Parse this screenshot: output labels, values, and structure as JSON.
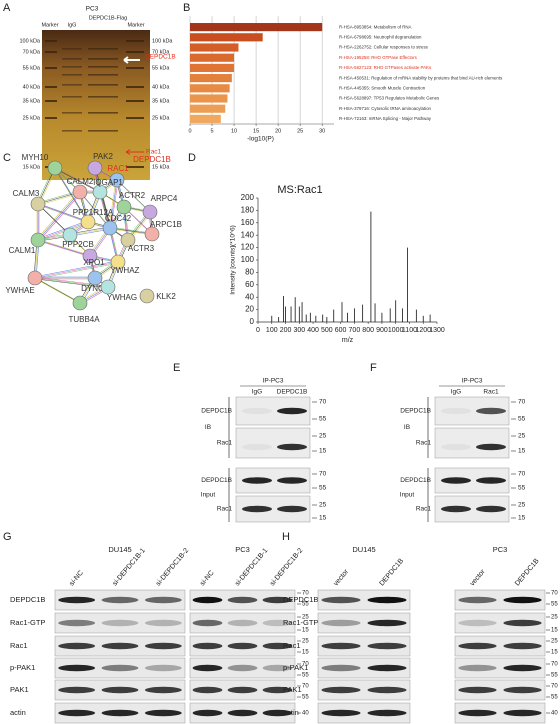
{
  "panel_labels": [
    "A",
    "B",
    "C",
    "D",
    "E",
    "F",
    "G",
    "H"
  ],
  "panel_a": {
    "header": "PC3",
    "lanes": [
      "Marker",
      "IgG",
      "DEPDC1B-Flag",
      "Marker"
    ],
    "markers": [
      "100 kDa",
      "70 kDa",
      "55 kDa",
      "40 kDa",
      "35 kDa",
      "25 kDa",
      "15 kDa"
    ],
    "annotations": [
      "DEPDC1B",
      "Rac1"
    ],
    "annotation_color": "#e0301e"
  },
  "panel_c": {
    "nodes": [
      {
        "label": "MYH10",
        "color": "#333333"
      },
      {
        "label": "PAK2",
        "color": "#333333"
      },
      {
        "label": "DEPDC1B",
        "color": "#e0301e"
      },
      {
        "label": "RAC1",
        "color": "#e0301e"
      },
      {
        "label": "CALM2",
        "color": "#333333"
      },
      {
        "label": "IQGAP1",
        "color": "#333333"
      },
      {
        "label": "CALM3",
        "color": "#333333"
      },
      {
        "label": "ACTR2",
        "color": "#333333"
      },
      {
        "label": "ARPC4",
        "color": "#333333"
      },
      {
        "label": "PPP1R12A",
        "color": "#333333"
      },
      {
        "label": "CDC42",
        "color": "#333333"
      },
      {
        "label": "ARPC1B",
        "color": "#333333"
      },
      {
        "label": "PPP2CB",
        "color": "#333333"
      },
      {
        "label": "ACTR3",
        "color": "#333333"
      },
      {
        "label": "CALM1",
        "color": "#333333"
      },
      {
        "label": "XPO1",
        "color": "#333333"
      },
      {
        "label": "YWHAZ",
        "color": "#333333"
      },
      {
        "label": "DYNC1I2",
        "color": "#333333"
      },
      {
        "label": "YWHAE",
        "color": "#333333"
      },
      {
        "label": "YWHAG",
        "color": "#333333"
      },
      {
        "label": "KLK2",
        "color": "#333333"
      },
      {
        "label": "TUBB4A",
        "color": "#333333"
      }
    ]
  },
  "chart_data": [
    {
      "type": "barh",
      "xlabel": "-log10(P)",
      "categories": [
        "R-HSA-8953854: Metabolism of RNA",
        "R-HSA-6798695: Neutrophil degranulation",
        "R-HSA-2262752: Cellular responses to stress",
        "R-HSA-195258: RHO GTPase Effectors",
        "R-HSA-5627123: RHO GTPases activate PAKs",
        "R-HSA-450531: Regulation of mRNA stability by proteins that bind AU-rich elements",
        "R-HSA-445355: Smooth Muscle Contraction",
        "R-HSA-5628897: TP53 Regulates Metabolic Genes",
        "R-HSA-379716: Cytosolic tRNA aminoacylation",
        "R-HSA-72163: mRNA Splicing - Major Pathway"
      ],
      "values": [
        30,
        16.5,
        11,
        10,
        10,
        9.5,
        9,
        8.5,
        8,
        7
      ],
      "colors": [
        "#a3361a",
        "#c84d1f",
        "#d35e28",
        "#da692e",
        "#df7434",
        "#e3803b",
        "#e78a43",
        "#ea954c",
        "#ed9e55",
        "#f0a85f"
      ],
      "label_colors": [
        "#333333",
        "#333333",
        "#333333",
        "#e0301e",
        "#e0301e",
        "#333333",
        "#333333",
        "#333333",
        "#333333",
        "#333333"
      ],
      "xlim": [
        0,
        32
      ],
      "xticks": [
        0,
        5,
        10,
        15,
        20,
        25,
        30
      ],
      "grid": true
    },
    {
      "type": "stem",
      "title": "MS:Rac1",
      "xlabel": "m/z",
      "ylabel": "Intensity [counts](*10^6)",
      "x": [
        100,
        150,
        185,
        200,
        240,
        270,
        300,
        320,
        350,
        380,
        420,
        470,
        500,
        550,
        610,
        650,
        700,
        760,
        820,
        850,
        900,
        960,
        1000,
        1050,
        1085,
        1150,
        1200,
        1250
      ],
      "values": [
        10,
        8,
        42,
        25,
        25,
        40,
        25,
        32,
        12,
        15,
        10,
        12,
        8,
        20,
        32,
        15,
        22,
        28,
        178,
        30,
        15,
        22,
        35,
        22,
        120,
        20,
        10,
        12
      ],
      "color": "#111111",
      "xlim": [
        0,
        1300
      ],
      "ylim": [
        0,
        200
      ],
      "xticks": [
        0,
        100,
        200,
        300,
        400,
        500,
        600,
        700,
        800,
        900,
        1000,
        1100,
        1200,
        1300
      ],
      "yticks": [
        0,
        20,
        40,
        60,
        80,
        100,
        120,
        140,
        160,
        180,
        200
      ]
    }
  ],
  "panel_e": {
    "header": "IP-PC3",
    "lanes": [
      "IgG",
      "DEPDC1B"
    ],
    "groups": [
      {
        "label": "IB",
        "rows": [
          "DEPDC1B",
          "Rac1"
        ]
      },
      {
        "label": "Input",
        "rows": [
          "DEPDC1B",
          "Rac1"
        ]
      }
    ],
    "markers": [
      70,
      55,
      25,
      15,
      70,
      55,
      25,
      15
    ]
  },
  "panel_f": {
    "header": "IP-PC3",
    "lanes": [
      "IgG",
      "Rac1"
    ],
    "groups": [
      {
        "label": "IB",
        "rows": [
          "DEPDC1B",
          "Rac1"
        ]
      },
      {
        "label": "Input",
        "rows": [
          "DEPDC1B",
          "Rac1"
        ]
      }
    ],
    "markers": [
      70,
      55,
      25,
      15,
      70,
      55,
      25,
      15
    ]
  },
  "panel_g": {
    "cell_lines": [
      {
        "name": "DU145",
        "lanes": [
          "si-NC",
          "si-DEPDC1B-1",
          "si-DEPDC1B-2"
        ]
      },
      {
        "name": "PC3",
        "lanes": [
          "si-NC",
          "si-DEPDC1B-1",
          "si-DEPDC1B-2"
        ]
      }
    ],
    "rows": [
      "DEPDC1B",
      "Rac1-GTP",
      "Rac1",
      "p-PAK1",
      "PAK1",
      "actin"
    ],
    "markers": [
      70,
      55,
      25,
      15,
      25,
      15,
      70,
      55,
      70,
      55,
      40
    ]
  },
  "panel_h": {
    "cell_lines": [
      {
        "name": "DU145",
        "lanes": [
          "vector",
          "DEPDC1B"
        ]
      },
      {
        "name": "PC3",
        "lanes": [
          "vector",
          "DEPDC1B"
        ]
      }
    ],
    "rows": [
      "DEPDC1B",
      "Rac1-GTP",
      "Rac1",
      "p-PAK1",
      "PAK1",
      "actin"
    ],
    "markers": [
      70,
      55,
      25,
      15,
      25,
      15,
      70,
      55,
      70,
      55,
      40
    ]
  }
}
